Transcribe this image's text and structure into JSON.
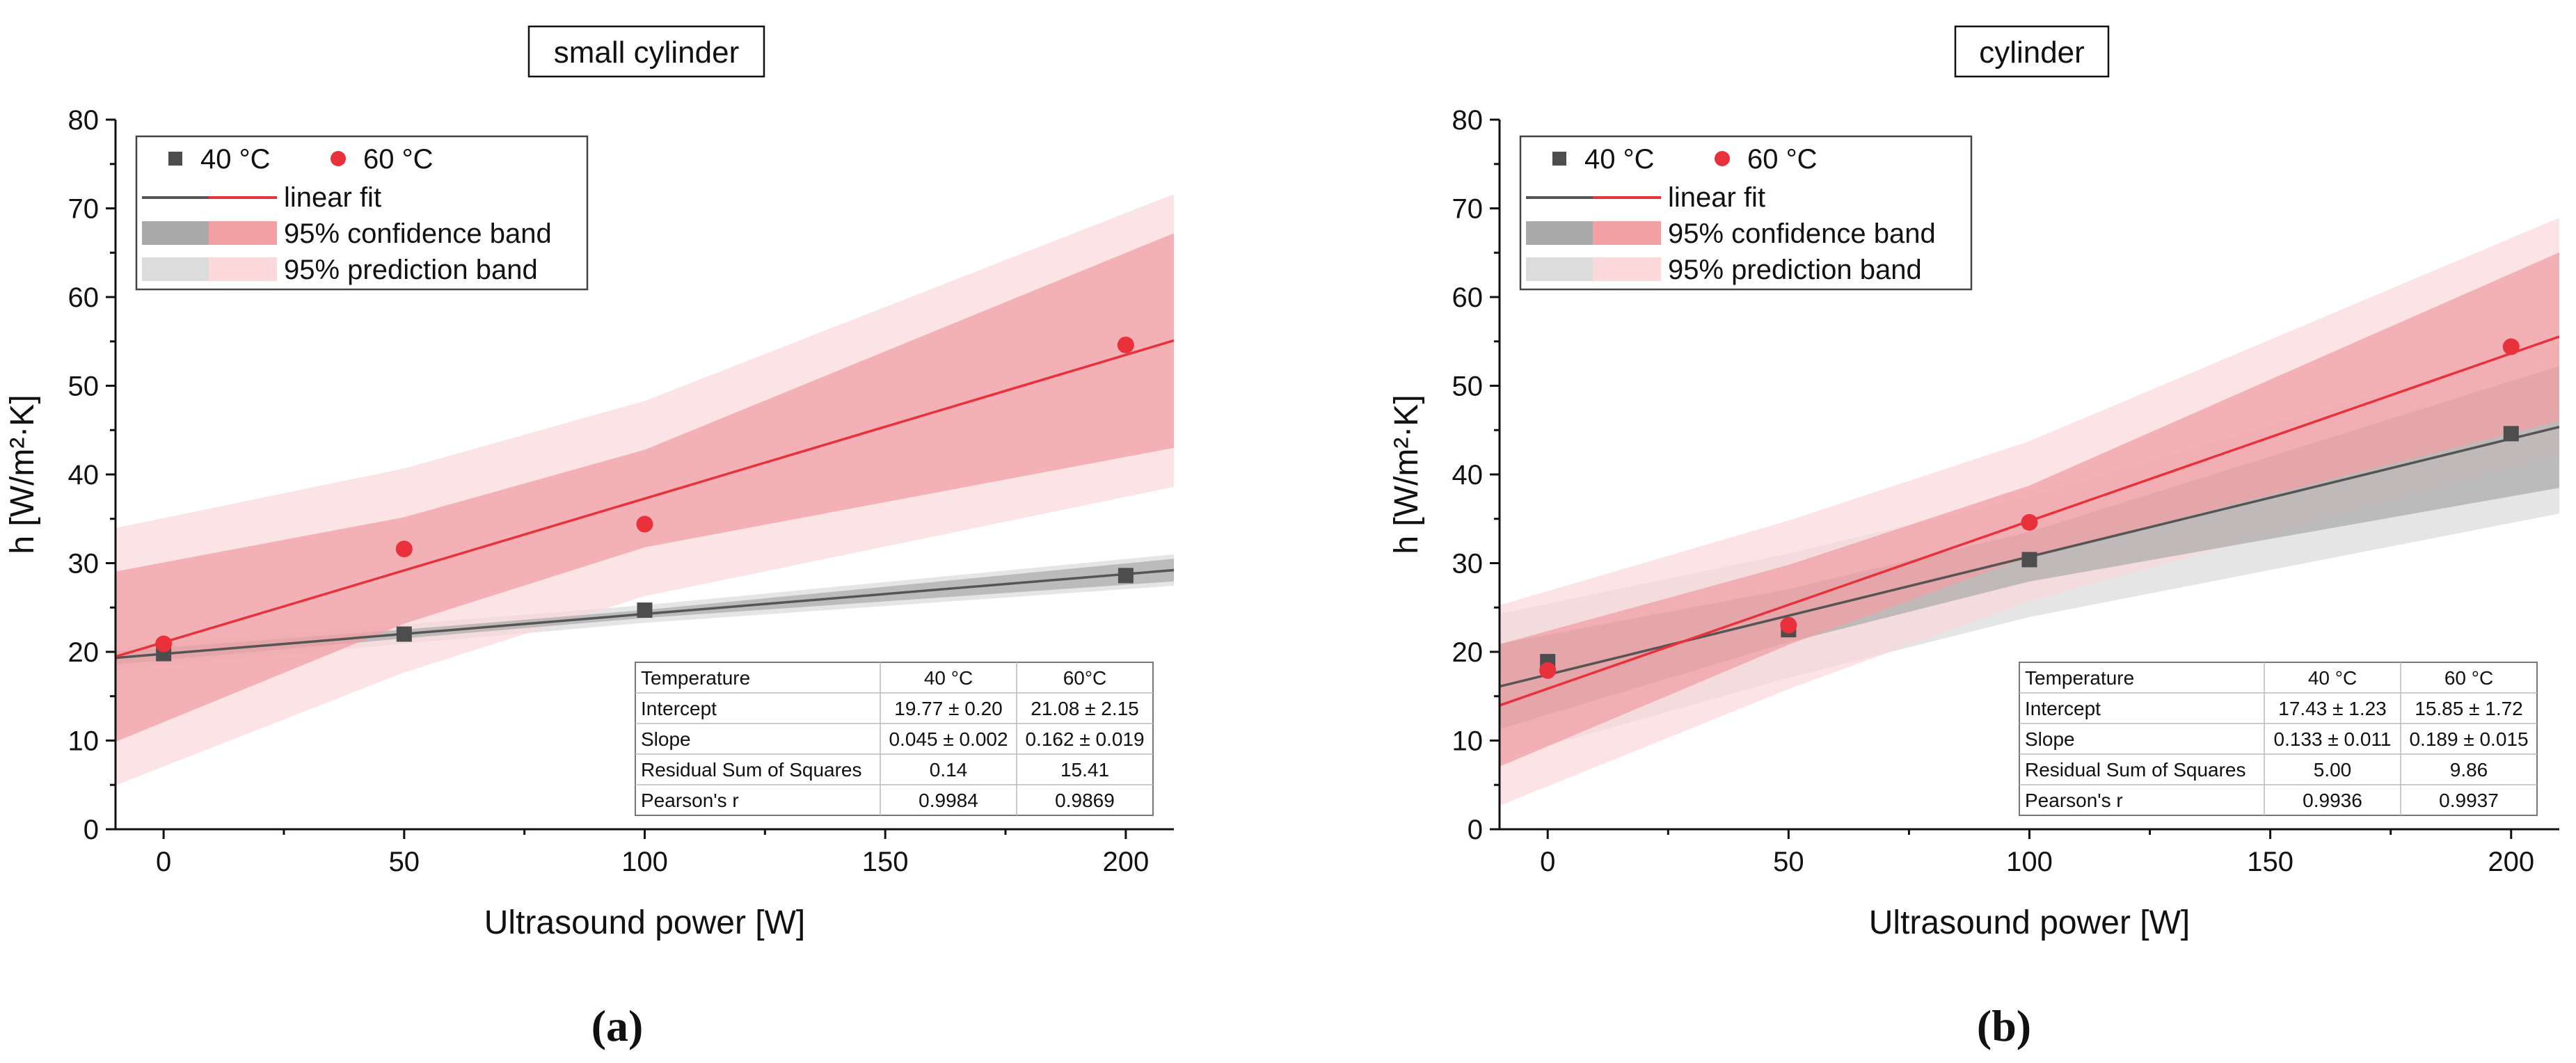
{
  "legend": {
    "series_40": "40 °C",
    "series_60": "60 °C",
    "fit": "linear fit",
    "confidence": "95% confidence band",
    "prediction": "95% prediction band"
  },
  "colors": {
    "series_40": "#4d4d4d",
    "series_60": "#e8313a",
    "fit_40": "#555555",
    "fit_60": "#e8313a",
    "conf_40": "#a9a9a9",
    "pred_40": "#dcdcdc",
    "conf_60": "#f2a0a4",
    "pred_60": "#fbd9db"
  },
  "chart_data": [
    {
      "type": "scatter",
      "panel_label": "(a)",
      "title": "small cylinder",
      "xlabel": "Ultrasound power [W]",
      "ylabel": "h [W/m²·K]",
      "xlim": [
        -10,
        210
      ],
      "ylim": [
        0,
        80
      ],
      "xticks": [
        0,
        50,
        100,
        150,
        200
      ],
      "yticks": [
        0,
        10,
        20,
        30,
        40,
        50,
        60,
        70,
        80
      ],
      "grid": false,
      "legend_position": "top-left",
      "series": [
        {
          "name": "40 °C",
          "marker": "square",
          "x": [
            0,
            50,
            100,
            200
          ],
          "y": [
            19.8,
            22.0,
            24.7,
            28.6
          ],
          "fit": {
            "intercept": 19.77,
            "slope": 0.045
          },
          "confidence_half_width": [
            0.7,
            0.5,
            0.45,
            1.2
          ],
          "prediction_half_width": [
            1.3,
            1.1,
            1.0,
            1.7
          ]
        },
        {
          "name": "60 °C",
          "marker": "circle",
          "x": [
            0,
            50,
            100,
            200
          ],
          "y": [
            20.9,
            31.6,
            34.4,
            54.6
          ],
          "fit": {
            "intercept": 21.08,
            "slope": 0.162
          },
          "confidence_half_width": [
            9.0,
            6.0,
            5.5,
            11.5
          ],
          "prediction_half_width": [
            14.0,
            11.5,
            11.0,
            16.0
          ]
        }
      ],
      "stats_table": {
        "header": [
          "Temperature",
          "40 °C",
          "60°C"
        ],
        "rows": [
          [
            "Intercept",
            "19.77 ± 0.20",
            "21.08 ± 2.15"
          ],
          [
            "Slope",
            "0.045 ± 0.002",
            "0.162 ± 0.019"
          ],
          [
            "Residual Sum of Squares",
            "0.14",
            "15.41"
          ],
          [
            "Pearson's r",
            "0.9984",
            "0.9869"
          ]
        ]
      }
    },
    {
      "type": "scatter",
      "panel_label": "(b)",
      "title": "cylinder",
      "xlabel": "Ultrasound power [W]",
      "ylabel": "h [W/m²·K]",
      "xlim": [
        -10,
        210
      ],
      "ylim": [
        0,
        80
      ],
      "xticks": [
        0,
        50,
        100,
        150,
        200
      ],
      "yticks": [
        0,
        10,
        20,
        30,
        40,
        50,
        60,
        70,
        80
      ],
      "grid": false,
      "legend_position": "top-left",
      "series": [
        {
          "name": "40 °C",
          "marker": "square",
          "x": [
            0,
            50,
            100,
            200
          ],
          "y": [
            18.9,
            22.5,
            30.4,
            44.6
          ],
          "fit": {
            "intercept": 17.43,
            "slope": 0.133
          },
          "confidence_half_width": [
            4.5,
            3.0,
            2.8,
            6.5
          ],
          "prediction_half_width": [
            8.0,
            7.0,
            6.8,
            9.5
          ]
        },
        {
          "name": "60 °C",
          "marker": "circle",
          "x": [
            0,
            50,
            100,
            200
          ],
          "y": [
            17.9,
            23.0,
            34.6,
            54.4
          ],
          "fit": {
            "intercept": 15.85,
            "slope": 0.189
          },
          "confidence_half_width": [
            6.5,
            4.5,
            4.0,
            9.0
          ],
          "prediction_half_width": [
            11.0,
            9.5,
            9.0,
            13.0
          ]
        }
      ],
      "stats_table": {
        "header": [
          "Temperature",
          "40 °C",
          "60 °C"
        ],
        "rows": [
          [
            "Intercept",
            "17.43 ± 1.23",
            "15.85 ± 1.72"
          ],
          [
            "Slope",
            "0.133 ± 0.011",
            "0.189 ± 0.015"
          ],
          [
            "Residual Sum of Squares",
            "5.00",
            "9.86"
          ],
          [
            "Pearson's r",
            "0.9936",
            "0.9937"
          ]
        ]
      }
    }
  ]
}
